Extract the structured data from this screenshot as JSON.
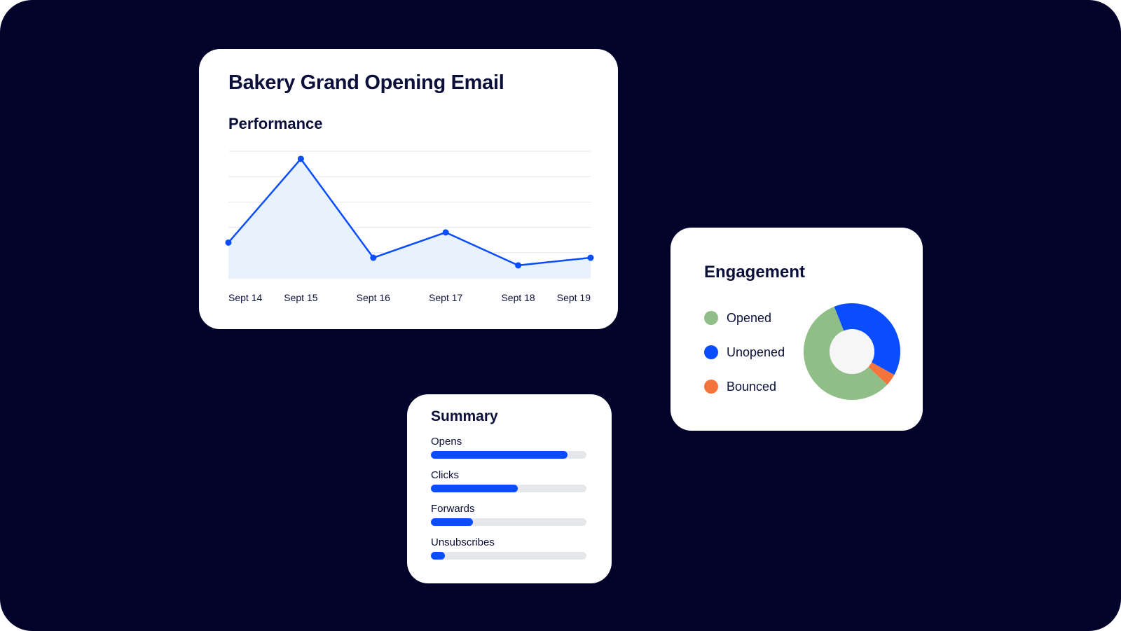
{
  "performance": {
    "title": "Bakery Grand Opening Email",
    "subtitle": "Performance"
  },
  "chart_data": {
    "type": "area",
    "categories": [
      "Sept 14",
      "Sept 15",
      "Sept 16",
      "Sept 17",
      "Sept 18",
      "Sept 19"
    ],
    "values": [
      1.4,
      4.7,
      0.8,
      1.8,
      0.5,
      0.8
    ],
    "ylim": [
      0,
      5
    ],
    "grid": true,
    "line_color": "#0a4cff",
    "fill_color": "#e8f2fc"
  },
  "engagement": {
    "title": "Engagement",
    "legend": [
      {
        "label": "Opened",
        "color": "#8fbf87"
      },
      {
        "label": "Unopened",
        "color": "#0a4cff"
      },
      {
        "label": "Bounced",
        "color": "#f4743b"
      }
    ],
    "chart_data": {
      "type": "pie",
      "labels": [
        "Opened",
        "Unopened",
        "Bounced"
      ],
      "values": [
        57,
        39,
        4
      ],
      "colors": [
        "#8fbf87",
        "#0a4cff",
        "#f4743b"
      ],
      "hole_color": "#f6f6f6"
    }
  },
  "summary": {
    "title": "Summary",
    "metrics": [
      {
        "label": "Opens",
        "fraction": 0.88
      },
      {
        "label": "Clicks",
        "fraction": 0.56
      },
      {
        "label": "Forwards",
        "fraction": 0.27
      },
      {
        "label": "Unsubscribes",
        "fraction": 0.09
      }
    ],
    "bar_color": "#0a4cff",
    "track_color": "#e6e7ea"
  }
}
